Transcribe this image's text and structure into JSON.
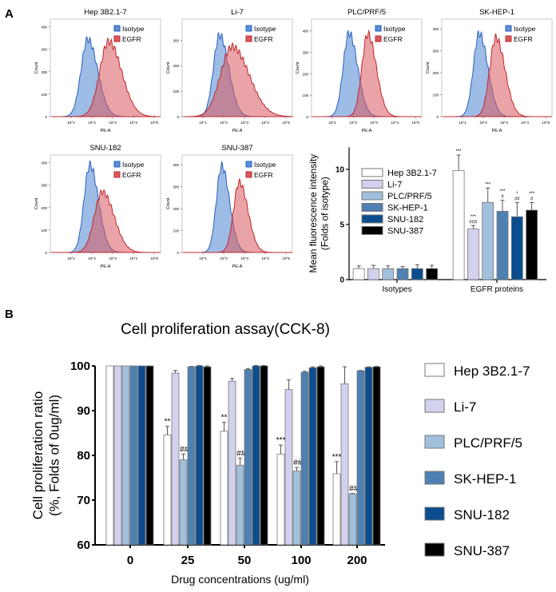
{
  "panel_labels": {
    "a": "A",
    "b": "B"
  },
  "colors": {
    "series": [
      "#ffffff",
      "#d2d2ef",
      "#a0c0dc",
      "#4e80b2",
      "#0b4d8e",
      "#000000"
    ],
    "isotype": "#5b8fd6",
    "egfr": "#d9585c"
  },
  "chart_data": [
    {
      "type": "histogram",
      "panel": "A",
      "xlabel": "PE-A",
      "ylabel": "Count",
      "x_ticks": [
        "10^1",
        "10^2",
        "10^3",
        "10^4",
        "10^5"
      ],
      "x_scale": "log",
      "legend": [
        "Isotype",
        "EGFR"
      ],
      "legend_position": "top-right",
      "plots": [
        {
          "title": "Hep 3B2.1-7",
          "yticks": [
            0,
            100,
            200,
            300,
            400
          ],
          "ymax": 420,
          "isotype": {
            "peak_log10": 1.8,
            "spread": 0.38,
            "height": 345
          },
          "egfr": {
            "peak_log10": 2.8,
            "spread": 0.5,
            "height": 335
          }
        },
        {
          "title": "Li-7",
          "yticks": [
            0,
            100,
            200,
            300
          ],
          "ymax": 370,
          "isotype": {
            "peak_log10": 1.8,
            "spread": 0.35,
            "height": 320
          },
          "egfr": {
            "peak_log10": 2.4,
            "spread": 0.65,
            "height": 275
          }
        },
        {
          "title": "PLC/PRF/5",
          "yticks": [
            0,
            100,
            200,
            300,
            400
          ],
          "ymax": 440,
          "isotype": {
            "peak_log10": 1.8,
            "spread": 0.33,
            "height": 390
          },
          "egfr": {
            "peak_log10": 2.7,
            "spread": 0.33,
            "height": 385
          }
        },
        {
          "title": "SK-HEP-1",
          "yticks": [
            0,
            100,
            200,
            300,
            400
          ],
          "ymax": 430,
          "isotype": {
            "peak_log10": 1.8,
            "spread": 0.33,
            "height": 380
          },
          "egfr": {
            "peak_log10": 2.6,
            "spread": 0.35,
            "height": 360
          }
        },
        {
          "title": "SNU-182",
          "yticks": [
            0,
            100,
            200,
            300,
            400
          ],
          "ymax": 420,
          "isotype": {
            "peak_log10": 1.9,
            "spread": 0.33,
            "height": 390
          },
          "egfr": {
            "peak_log10": 2.5,
            "spread": 0.45,
            "height": 270
          }
        },
        {
          "title": "SNU-387",
          "yticks": [
            0,
            100,
            200,
            300,
            400
          ],
          "ymax": 430,
          "isotype": {
            "peak_log10": 1.9,
            "spread": 0.3,
            "height": 395
          },
          "egfr": {
            "peak_log10": 2.75,
            "spread": 0.33,
            "height": 320
          }
        }
      ]
    },
    {
      "type": "bar",
      "panel": "A",
      "ylabel": "Mean fluorescence intensity (Folds of isotype)",
      "ylabel_lines": [
        "Mean fluorescence intensity",
        "(Folds of isotype)"
      ],
      "ylim": [
        0,
        12
      ],
      "yticks": [
        0,
        5,
        10
      ],
      "categories": [
        "Isotypes",
        "EGFR proteins"
      ],
      "legend_position": "top-left",
      "series": [
        {
          "name": "Hep 3B2.1-7",
          "values": [
            1.0,
            9.9
          ],
          "errors": [
            0.25,
            1.4
          ],
          "annotations": [
            "",
            "***"
          ]
        },
        {
          "name": "Li-7",
          "values": [
            1.0,
            4.6
          ],
          "errors": [
            0.3,
            0.3
          ],
          "annotations": [
            "",
            "***\n###"
          ]
        },
        {
          "name": "PLC/PRF/5",
          "values": [
            1.0,
            7.0
          ],
          "errors": [
            0.25,
            1.3
          ],
          "annotations": [
            "",
            "***"
          ]
        },
        {
          "name": "SK-HEP-1",
          "values": [
            1.0,
            6.2
          ],
          "errors": [
            0.2,
            1.0
          ],
          "annotations": [
            "",
            "***\n#"
          ]
        },
        {
          "name": "SNU-182",
          "values": [
            1.0,
            5.7
          ],
          "errors": [
            0.35,
            1.3
          ],
          "annotations": [
            "",
            "*\n##"
          ]
        },
        {
          "name": "SNU-387",
          "values": [
            1.0,
            6.3
          ],
          "errors": [
            0.3,
            0.7
          ],
          "annotations": [
            "",
            "***\n#"
          ]
        }
      ]
    },
    {
      "type": "bar",
      "panel": "B",
      "title": "Cell proliferation assay(CCK-8)",
      "xlabel": "Drug concentrations (ug/ml)",
      "ylabel_lines": [
        "Cell proliferation ratio",
        "(%, Folds of 0ug/ml)"
      ],
      "ylim": [
        60,
        100
      ],
      "yticks": [
        60,
        70,
        80,
        90,
        100
      ],
      "categories": [
        "0",
        "25",
        "50",
        "100",
        "200"
      ],
      "legend_position": "right",
      "series": [
        {
          "name": "Hep 3B2.1-7",
          "values": [
            100,
            84.6,
            85.4,
            80.3,
            75.9
          ],
          "errors": [
            0,
            1.9,
            2.0,
            2.0,
            2.7
          ],
          "annotations": [
            "",
            "**",
            "**",
            "***",
            "***"
          ]
        },
        {
          "name": "Li-7",
          "values": [
            100,
            98.4,
            96.6,
            94.7,
            96.0
          ],
          "errors": [
            0,
            0.6,
            0.6,
            2.2,
            3.8
          ],
          "annotations": [
            "",
            "",
            "",
            "",
            ""
          ]
        },
        {
          "name": "PLC/PRF/5",
          "values": [
            100,
            79.0,
            77.8,
            76.5,
            71.4
          ],
          "errors": [
            0,
            1.3,
            1.6,
            0.8,
            0.1
          ],
          "annotations": [
            "",
            "###",
            "###",
            "###",
            "###"
          ]
        },
        {
          "name": "SK-HEP-1",
          "values": [
            100,
            99.8,
            99.2,
            98.6,
            98.9
          ],
          "errors": [
            0,
            0.1,
            0.2,
            0.2,
            0.1
          ],
          "annotations": [
            "",
            "",
            "",
            "",
            ""
          ]
        },
        {
          "name": "SNU-182",
          "values": [
            100,
            100,
            100,
            99.6,
            99.7
          ],
          "errors": [
            0,
            0.1,
            0.1,
            0.2,
            0.1
          ],
          "annotations": [
            "",
            "",
            "",
            "",
            ""
          ]
        },
        {
          "name": "SNU-387",
          "values": [
            100,
            99.8,
            100,
            99.8,
            99.8
          ],
          "errors": [
            0,
            0.2,
            0.1,
            0.2,
            0.1
          ],
          "annotations": [
            "",
            "",
            "",
            "",
            ""
          ]
        }
      ]
    }
  ]
}
